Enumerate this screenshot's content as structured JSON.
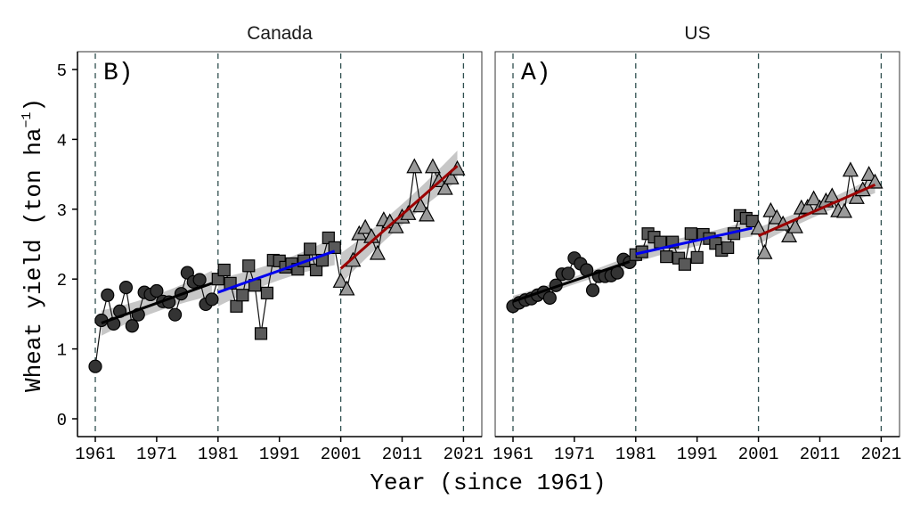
{
  "chart_data": {
    "type": "scatter",
    "ylabel_main": "Wheat yield (ton ha",
    "ylabel_sup": "−1",
    "ylabel_close": ")",
    "xlabel": "Year (since 1961)",
    "ylim": [
      0,
      5.2
    ],
    "xlim": [
      1958,
      2024
    ],
    "yticks": [
      0,
      1,
      2,
      3,
      4,
      5
    ],
    "xticks": [
      1961,
      1971,
      1981,
      1991,
      2001,
      2011,
      2021
    ],
    "breakpoints": [
      1961,
      1981,
      2001,
      2021
    ],
    "colors": {
      "period1_line": "#000000",
      "period2_line": "#0000ee",
      "period3_line": "#9b0000",
      "ribbon": "#bdbdbd",
      "circle_fill": "#333333",
      "square_fill": "#595959",
      "triangle_fill": "#9a9a9a",
      "vline": "#2f4f4f"
    },
    "panels": [
      {
        "strip": "Canada",
        "tag": "B)",
        "periods": [
          {
            "marker": "circle",
            "x": [
              1961,
              1962,
              1963,
              1964,
              1965,
              1966,
              1967,
              1968,
              1969,
              1970,
              1971,
              1972,
              1973,
              1974,
              1975,
              1976,
              1977,
              1978,
              1979,
              1980
            ],
            "y": [
              0.75,
              1.41,
              1.77,
              1.36,
              1.54,
              1.88,
              1.33,
              1.49,
              1.81,
              1.78,
              1.83,
              1.68,
              1.67,
              1.49,
              1.79,
              2.09,
              1.96,
              1.99,
              1.64,
              1.71
            ],
            "fit": {
              "x": [
                1962,
                1980
              ],
              "y": [
                1.37,
                1.94
              ],
              "ci": 0.18
            }
          },
          {
            "marker": "square",
            "x": [
              1981,
              1982,
              1983,
              1984,
              1985,
              1986,
              1987,
              1988,
              1989,
              1990,
              1991,
              1992,
              1993,
              1994,
              1995,
              1996,
              1997,
              1998,
              1999,
              2000
            ],
            "y": [
              2.0,
              2.13,
              1.94,
              1.61,
              1.77,
              2.19,
              1.91,
              1.22,
              1.8,
              2.27,
              2.26,
              2.17,
              2.22,
              2.14,
              2.26,
              2.43,
              2.13,
              2.27,
              2.59,
              2.45
            ],
            "fit": {
              "x": [
                1981,
                2000
              ],
              "y": [
                1.81,
                2.4
              ],
              "ci": 0.2
            }
          },
          {
            "marker": "triangle",
            "x": [
              2001,
              2002,
              2003,
              2004,
              2005,
              2006,
              2007,
              2008,
              2009,
              2010,
              2011,
              2012,
              2013,
              2014,
              2015,
              2016,
              2017,
              2018,
              2019,
              2020
            ],
            "y": [
              1.96,
              1.85,
              2.26,
              2.64,
              2.73,
              2.6,
              2.36,
              2.84,
              2.81,
              2.74,
              2.88,
              2.93,
              3.6,
              3.04,
              2.91,
              3.6,
              3.4,
              3.29,
              3.44,
              3.57
            ],
            "fit": {
              "x": [
                2001,
                2020
              ],
              "y": [
                2.15,
                3.62
              ],
              "ci": 0.22
            }
          }
        ]
      },
      {
        "strip": "US",
        "tag": "A)",
        "periods": [
          {
            "marker": "circle",
            "x": [
              1961,
              1962,
              1963,
              1964,
              1965,
              1966,
              1967,
              1968,
              1969,
              1970,
              1971,
              1972,
              1973,
              1974,
              1975,
              1976,
              1977,
              1978,
              1979,
              1980
            ],
            "y": [
              1.61,
              1.66,
              1.7,
              1.72,
              1.77,
              1.81,
              1.73,
              1.91,
              2.07,
              2.08,
              2.3,
              2.22,
              2.13,
              1.84,
              2.04,
              2.04,
              2.05,
              2.09,
              2.28,
              2.24
            ],
            "fit": {
              "x": [
                1961,
                1980
              ],
              "y": [
                1.68,
                2.25
              ],
              "ci": 0.08
            }
          },
          {
            "marker": "square",
            "x": [
              1981,
              1982,
              1983,
              1984,
              1985,
              1986,
              1987,
              1988,
              1989,
              1990,
              1991,
              1992,
              1993,
              1994,
              1995,
              1996,
              1997,
              1998,
              1999,
              2000
            ],
            "y": [
              2.35,
              2.39,
              2.65,
              2.6,
              2.53,
              2.32,
              2.53,
              2.3,
              2.21,
              2.65,
              2.31,
              2.64,
              2.58,
              2.51,
              2.41,
              2.45,
              2.65,
              2.91,
              2.87,
              2.83
            ],
            "fit": {
              "x": [
                1981,
                2000
              ],
              "y": [
                2.36,
                2.73
              ],
              "ci": 0.12
            }
          },
          {
            "marker": "triangle",
            "x": [
              2001,
              2002,
              2003,
              2004,
              2005,
              2006,
              2007,
              2008,
              2009,
              2010,
              2011,
              2012,
              2013,
              2014,
              2015,
              2016,
              2017,
              2018,
              2019,
              2020
            ],
            "y": [
              2.72,
              2.37,
              2.97,
              2.87,
              2.78,
              2.61,
              2.74,
              3.01,
              3.02,
              3.14,
              3.01,
              3.11,
              3.18,
              2.97,
              2.96,
              3.55,
              3.16,
              3.27,
              3.49,
              3.38
            ],
            "fit": {
              "x": [
                2001,
                2020
              ],
              "y": [
                2.62,
                3.35
              ],
              "ci": 0.12
            }
          }
        ]
      }
    ]
  }
}
